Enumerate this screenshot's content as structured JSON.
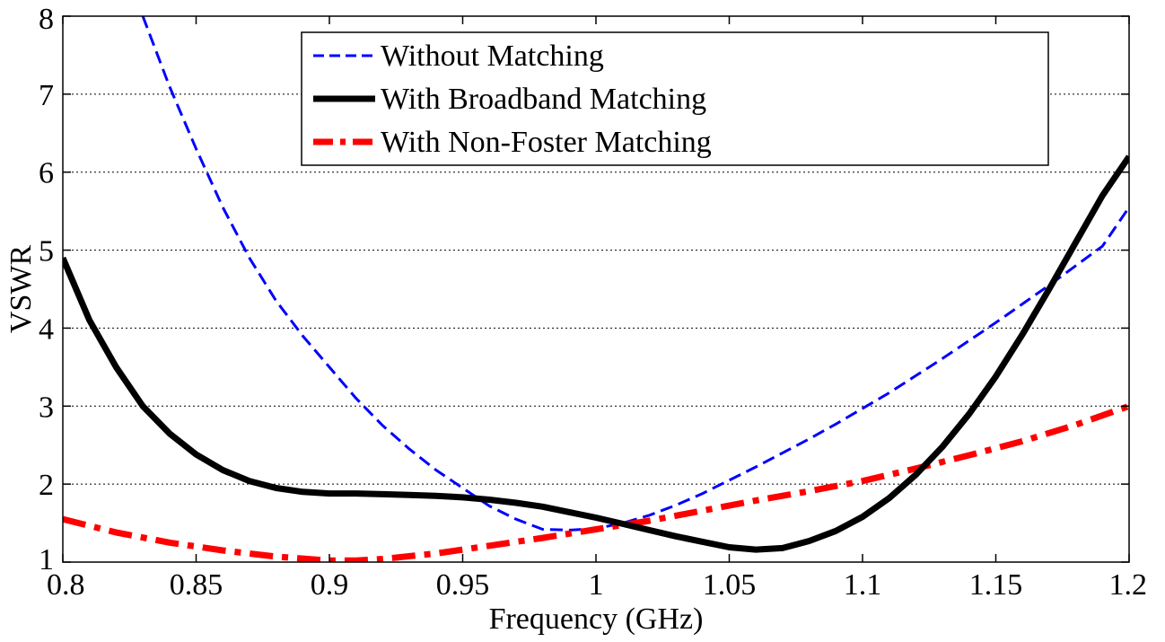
{
  "chart_data": {
    "type": "line",
    "title": "",
    "xlabel": "Frequency (GHz)",
    "ylabel": "VSWR",
    "xlim": [
      0.8,
      1.2
    ],
    "ylim": [
      1,
      8
    ],
    "x_ticks": [
      "0.8",
      "0.85",
      "0.9",
      "0.95",
      "1",
      "1.05",
      "1.1",
      "1.15",
      "1.2"
    ],
    "x_tick_values": [
      0.8,
      0.85,
      0.9,
      0.95,
      1.0,
      1.05,
      1.1,
      1.15,
      1.2
    ],
    "y_ticks": [
      "1",
      "2",
      "3",
      "4",
      "5",
      "6",
      "7",
      "8"
    ],
    "y_tick_values": [
      1,
      2,
      3,
      4,
      5,
      6,
      7,
      8
    ],
    "grid": "horizontal dotted",
    "legend_position": "top-center",
    "series": [
      {
        "name": "Without Matching",
        "color": "#0000ff",
        "style": "dashed",
        "x": [
          0.83,
          0.84,
          0.85,
          0.86,
          0.87,
          0.88,
          0.89,
          0.9,
          0.91,
          0.92,
          0.93,
          0.94,
          0.95,
          0.96,
          0.97,
          0.98,
          0.99,
          1.0,
          1.01,
          1.02,
          1.03,
          1.04,
          1.05,
          1.06,
          1.07,
          1.08,
          1.09,
          1.1,
          1.11,
          1.12,
          1.13,
          1.14,
          1.15,
          1.16,
          1.17,
          1.18,
          1.19,
          1.2
        ],
        "y": [
          8.0,
          7.1,
          6.3,
          5.55,
          4.9,
          4.35,
          3.9,
          3.5,
          3.1,
          2.75,
          2.45,
          2.18,
          1.95,
          1.72,
          1.55,
          1.42,
          1.41,
          1.43,
          1.5,
          1.6,
          1.73,
          1.88,
          2.05,
          2.22,
          2.4,
          2.58,
          2.77,
          2.97,
          3.17,
          3.39,
          3.61,
          3.84,
          4.07,
          4.31,
          4.55,
          4.8,
          5.05,
          5.55
        ]
      },
      {
        "name": "With Broadband Matching",
        "color": "#000000",
        "style": "solid",
        "x": [
          0.8,
          0.81,
          0.82,
          0.83,
          0.84,
          0.85,
          0.86,
          0.87,
          0.88,
          0.89,
          0.9,
          0.91,
          0.92,
          0.93,
          0.94,
          0.95,
          0.96,
          0.97,
          0.98,
          0.99,
          1.0,
          1.01,
          1.02,
          1.03,
          1.04,
          1.05,
          1.06,
          1.07,
          1.08,
          1.09,
          1.1,
          1.11,
          1.12,
          1.13,
          1.14,
          1.15,
          1.16,
          1.17,
          1.18,
          1.19,
          1.2
        ],
        "y": [
          4.9,
          4.1,
          3.5,
          3.0,
          2.65,
          2.38,
          2.18,
          2.04,
          1.95,
          1.9,
          1.88,
          1.88,
          1.87,
          1.86,
          1.85,
          1.83,
          1.8,
          1.76,
          1.71,
          1.64,
          1.57,
          1.49,
          1.41,
          1.33,
          1.26,
          1.19,
          1.16,
          1.18,
          1.27,
          1.4,
          1.58,
          1.82,
          2.12,
          2.48,
          2.9,
          3.38,
          3.92,
          4.5,
          5.1,
          5.7,
          6.2
        ]
      },
      {
        "name": "With Non-Foster Matching",
        "color": "#ff0000",
        "style": "dash-dot",
        "x": [
          0.8,
          0.82,
          0.84,
          0.86,
          0.88,
          0.9,
          0.91,
          0.92,
          0.94,
          0.96,
          0.98,
          1.0,
          1.02,
          1.04,
          1.06,
          1.08,
          1.1,
          1.12,
          1.14,
          1.16,
          1.18,
          1.2
        ],
        "y": [
          1.55,
          1.38,
          1.25,
          1.15,
          1.07,
          1.02,
          1.02,
          1.04,
          1.11,
          1.21,
          1.31,
          1.42,
          1.53,
          1.66,
          1.79,
          1.91,
          2.04,
          2.2,
          2.37,
          2.55,
          2.76,
          3.0
        ]
      }
    ]
  }
}
